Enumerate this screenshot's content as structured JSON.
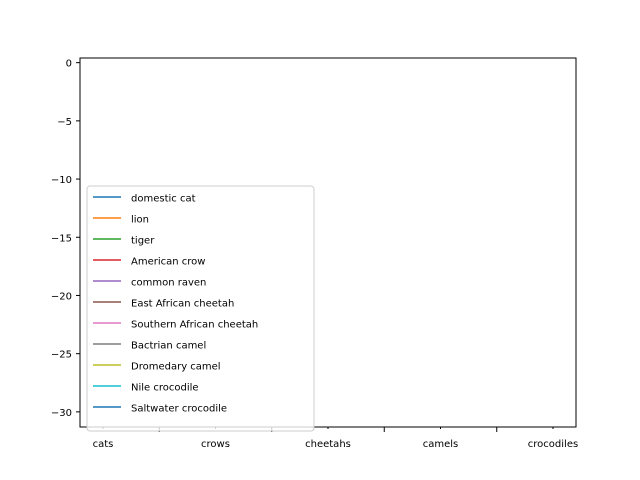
{
  "chart_data": {
    "type": "line",
    "title": "",
    "xlabel": "",
    "ylabel": "",
    "ylim": [
      -31.3,
      0.4
    ],
    "yticks": [
      0,
      -5,
      -10,
      -15,
      -20,
      -25,
      -30
    ],
    "ytick_labels": [
      "0",
      "−5",
      "−10",
      "−15",
      "−20",
      "−25",
      "−30"
    ],
    "group_labels": [
      "cats",
      "crows",
      "cheetahs",
      "camels",
      "crocodiles"
    ],
    "grid": false,
    "legend_position": "lower-left",
    "series": [
      {
        "name": "domestic cat",
        "color": "#1f77b4",
        "values": []
      },
      {
        "name": "lion",
        "color": "#ff7f0e",
        "values": []
      },
      {
        "name": "tiger",
        "color": "#2ca02c",
        "values": []
      },
      {
        "name": "American crow",
        "color": "#d62728",
        "values": []
      },
      {
        "name": "common raven",
        "color": "#9467bd",
        "values": []
      },
      {
        "name": "East African cheetah",
        "color": "#8c564b",
        "values": []
      },
      {
        "name": "Southern African cheetah",
        "color": "#e377c2",
        "values": []
      },
      {
        "name": "Bactrian camel",
        "color": "#7f7f7f",
        "values": []
      },
      {
        "name": "Dromedary camel",
        "color": "#bcbd22",
        "values": []
      },
      {
        "name": "Nile crocodile",
        "color": "#17becf",
        "values": []
      },
      {
        "name": "Saltwater crocodile",
        "color": "#1f77b4",
        "values": []
      }
    ]
  }
}
